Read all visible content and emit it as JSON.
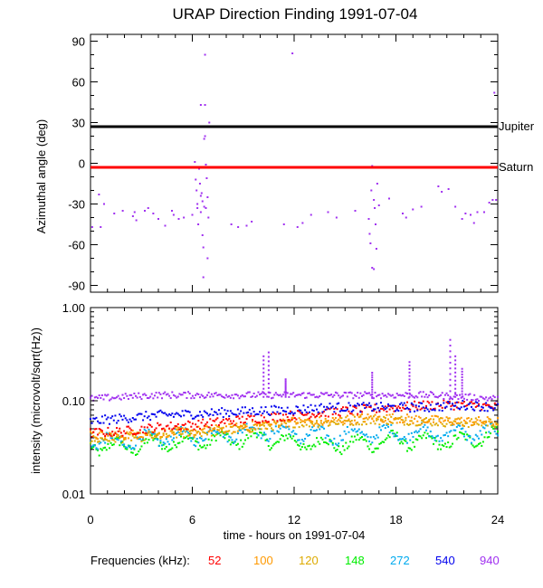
{
  "chart_data": [
    {
      "type": "scatter",
      "title": "URAP Direction Finding  1991-07-04",
      "ylabel": "Azimuthal angle (deg)",
      "xlim": [
        0,
        24
      ],
      "ylim": [
        -95,
        95
      ],
      "yticks": [
        90,
        60,
        30,
        0,
        -30,
        -60,
        -90
      ],
      "reference_lines": [
        {
          "name": "Jupiter",
          "y": 27,
          "color": "#000000"
        },
        {
          "name": "Saturn",
          "y": -3,
          "color": "#ff0000"
        }
      ],
      "points": [
        [
          0.1,
          -47
        ],
        [
          0.6,
          -47
        ],
        [
          0.5,
          -23
        ],
        [
          0.8,
          -30
        ],
        [
          1.4,
          -37
        ],
        [
          1.9,
          -35
        ],
        [
          2.5,
          -39
        ],
        [
          2.7,
          -42
        ],
        [
          2.6,
          -36
        ],
        [
          3.2,
          -35
        ],
        [
          3.4,
          -33
        ],
        [
          3.7,
          -37
        ],
        [
          4.0,
          -41
        ],
        [
          4.4,
          -46
        ],
        [
          4.8,
          -35
        ],
        [
          4.9,
          -38
        ],
        [
          5.2,
          -41
        ],
        [
          5.5,
          -40
        ],
        [
          6.0,
          -38
        ],
        [
          6.3,
          -30
        ],
        [
          6.5,
          -36
        ],
        [
          6.6,
          -28
        ],
        [
          6.7,
          -32
        ],
        [
          6.8,
          -33
        ],
        [
          6.15,
          1
        ],
        [
          6.2,
          -12
        ],
        [
          6.25,
          -20
        ],
        [
          6.3,
          -33
        ],
        [
          6.35,
          -45
        ],
        [
          6.4,
          -4
        ],
        [
          6.45,
          -15
        ],
        [
          6.5,
          -24
        ],
        [
          6.55,
          -22
        ],
        [
          6.6,
          -53
        ],
        [
          6.65,
          -62
        ],
        [
          6.7,
          18
        ],
        [
          6.75,
          20
        ],
        [
          6.8,
          -1
        ],
        [
          6.85,
          -11
        ],
        [
          6.9,
          -25
        ],
        [
          6.95,
          -40
        ],
        [
          6.75,
          43
        ],
        [
          6.5,
          43
        ],
        [
          6.75,
          80
        ],
        [
          6.65,
          -84
        ],
        [
          7.0,
          30
        ],
        [
          6.9,
          -70
        ],
        [
          8.3,
          -45
        ],
        [
          8.7,
          -47
        ],
        [
          9.2,
          -46
        ],
        [
          9.5,
          -43
        ],
        [
          11.4,
          -45
        ],
        [
          11.9,
          81
        ],
        [
          12.2,
          -47
        ],
        [
          12.5,
          -44
        ],
        [
          13.0,
          -38
        ],
        [
          14.0,
          -36
        ],
        [
          14.5,
          -40
        ],
        [
          15.6,
          -35
        ],
        [
          16.4,
          -41
        ],
        [
          16.5,
          -59
        ],
        [
          16.6,
          -77
        ],
        [
          16.7,
          -78
        ],
        [
          16.55,
          -20
        ],
        [
          16.45,
          -52
        ],
        [
          16.6,
          -2
        ],
        [
          16.7,
          -27
        ],
        [
          16.8,
          -45
        ],
        [
          16.9,
          -15
        ],
        [
          17.0,
          -31
        ],
        [
          16.85,
          -63
        ],
        [
          16.75,
          -33
        ],
        [
          17.6,
          -26
        ],
        [
          18.4,
          -37
        ],
        [
          18.6,
          -40
        ],
        [
          19.0,
          -34
        ],
        [
          19.5,
          -32
        ],
        [
          20.5,
          -17
        ],
        [
          20.7,
          -21
        ],
        [
          21.1,
          -19
        ],
        [
          21.5,
          -32
        ],
        [
          21.9,
          -41
        ],
        [
          22.1,
          -37
        ],
        [
          22.4,
          -38
        ],
        [
          22.6,
          -44
        ],
        [
          22.8,
          -36
        ],
        [
          23.2,
          -36
        ],
        [
          23.5,
          -29
        ],
        [
          23.7,
          -27
        ],
        [
          23.9,
          -27
        ],
        [
          23.8,
          52
        ]
      ]
    },
    {
      "type": "scatter",
      "ylabel": "intensity (microvolt/sqrt(Hz))",
      "xlabel": "time - hours on 1991-07-04",
      "xlim": [
        0,
        24
      ],
      "yscale": "log",
      "ylim": [
        0.01,
        1.0
      ],
      "xticks": [
        0,
        6,
        12,
        18,
        24
      ],
      "yticks": [
        1.0,
        0.1,
        0.01
      ],
      "ytick_labels": [
        "1.00",
        "0.10",
        "0.01"
      ],
      "legend_title": "Frequencies (kHz):",
      "series": [
        {
          "name": "52",
          "color": "#ff0000",
          "x": [
            0,
            2,
            4,
            6,
            8,
            10,
            12,
            14,
            16,
            18,
            20,
            22,
            24
          ],
          "y": [
            0.045,
            0.047,
            0.052,
            0.055,
            0.06,
            0.065,
            0.07,
            0.075,
            0.08,
            0.085,
            0.09,
            0.09,
            0.085
          ]
        },
        {
          "name": "100",
          "color": "#ff9900",
          "x": [
            0,
            2,
            4,
            6,
            8,
            10,
            12,
            14,
            16,
            18,
            20,
            22,
            24
          ],
          "y": [
            0.042,
            0.043,
            0.045,
            0.047,
            0.05,
            0.055,
            0.06,
            0.06,
            0.065,
            0.065,
            0.062,
            0.06,
            0.06
          ]
        },
        {
          "name": "120",
          "color": "#ddaa00",
          "x": [
            0,
            2,
            4,
            6,
            8,
            10,
            12,
            14,
            16,
            18,
            20,
            22,
            24
          ],
          "y": [
            0.038,
            0.04,
            0.042,
            0.045,
            0.048,
            0.052,
            0.058,
            0.058,
            0.062,
            0.062,
            0.06,
            0.058,
            0.058
          ]
        },
        {
          "name": "148",
          "color": "#00ee00",
          "x": [
            0,
            2,
            4,
            6,
            8,
            10,
            12,
            14,
            16,
            18,
            20,
            22,
            24
          ],
          "y": [
            0.033,
            0.032,
            0.035,
            0.037,
            0.038,
            0.04,
            0.036,
            0.034,
            0.035,
            0.038,
            0.036,
            0.037,
            0.045
          ]
        },
        {
          "name": "272",
          "color": "#00aaee",
          "x": [
            0,
            2,
            4,
            6,
            8,
            10,
            12,
            14,
            16,
            18,
            20,
            22,
            24
          ],
          "y": [
            0.038,
            0.036,
            0.04,
            0.042,
            0.045,
            0.048,
            0.045,
            0.042,
            0.045,
            0.045,
            0.045,
            0.045,
            0.045
          ]
        },
        {
          "name": "540",
          "color": "#0000ee",
          "x": [
            0,
            2,
            4,
            6,
            8,
            10,
            12,
            14,
            16,
            18,
            20,
            22,
            24
          ],
          "y": [
            0.06,
            0.065,
            0.07,
            0.072,
            0.075,
            0.078,
            0.08,
            0.085,
            0.085,
            0.085,
            0.085,
            0.09,
            0.085
          ]
        },
        {
          "name": "940",
          "color": "#a030f0",
          "x": [
            0,
            2,
            4,
            6,
            8,
            10,
            12,
            14,
            16,
            18,
            20,
            22,
            24
          ],
          "y": [
            0.105,
            0.11,
            0.115,
            0.115,
            0.115,
            0.115,
            0.115,
            0.115,
            0.115,
            0.115,
            0.115,
            0.11,
            0.105
          ]
        }
      ],
      "spikes": [
        {
          "x": 10.2,
          "y": 0.3
        },
        {
          "x": 10.5,
          "y": 0.33
        },
        {
          "x": 11.5,
          "y": 0.17
        },
        {
          "x": 16.6,
          "y": 0.2
        },
        {
          "x": 18.8,
          "y": 0.26
        },
        {
          "x": 21.2,
          "y": 0.45
        },
        {
          "x": 21.5,
          "y": 0.3
        },
        {
          "x": 21.9,
          "y": 0.22
        }
      ]
    }
  ]
}
